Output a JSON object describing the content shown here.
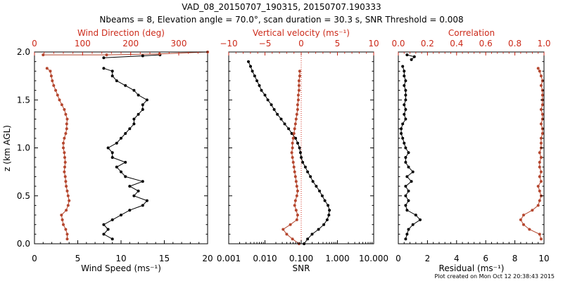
{
  "title_line1": "VAD_08_20150707_190315, 20150707.190333",
  "title_line2": "Nbeams = 8, Elevation angle = 70.0°, scan duration = 30.3 s, SNR Threshold = 0.008",
  "footer": "Plot created on Mon Oct 12 20:38:43 2015",
  "colors": {
    "primary": "#000000",
    "secondary": "#b5472f",
    "axis_red": "#cc2a1a"
  },
  "chart_data": [
    {
      "type": "line",
      "panel": "wind",
      "ylabel": "z (km AGL)",
      "ylim": [
        0.0,
        2.0
      ],
      "yticks": [
        "0.0",
        "0.5",
        "1.0",
        "1.5",
        "2.0"
      ],
      "xlabel": "Wind Speed (ms⁻¹)",
      "xlim": [
        0,
        20
      ],
      "xticks": [
        "0",
        "5",
        "10",
        "15",
        "20"
      ],
      "top_xlabel": "Wind Direction (deg)",
      "top_xlim": [
        0,
        360
      ],
      "top_xticks": [
        "0",
        "100",
        "200",
        "300"
      ],
      "series": [
        {
          "name": "Wind Speed",
          "axis": "bottom",
          "color": "#000000",
          "z": [
            0.05,
            0.1,
            0.15,
            0.2,
            0.25,
            0.3,
            0.35,
            0.4,
            0.45,
            0.5,
            0.55,
            0.6,
            0.65,
            0.7,
            0.75,
            0.8,
            0.85,
            0.9,
            0.95,
            1.0,
            1.05,
            1.1,
            1.15,
            1.2,
            1.25,
            1.3,
            1.35,
            1.4,
            1.45,
            1.5,
            1.55,
            1.6,
            1.65,
            1.7,
            1.75,
            1.8,
            1.83
          ],
          "values": [
            9.0,
            8.0,
            8.5,
            8.0,
            9.0,
            10.0,
            11.0,
            12.5,
            13.0,
            11.5,
            12.0,
            11.0,
            12.5,
            10.5,
            10.0,
            9.5,
            10.5,
            9.0,
            9.0,
            8.5,
            9.5,
            10.0,
            10.5,
            11.0,
            11.5,
            11.5,
            12.0,
            12.5,
            12.5,
            13.0,
            12.0,
            11.5,
            10.5,
            9.5,
            9.0,
            9.0,
            8.0
          ]
        },
        {
          "name": "Wind Direction",
          "axis": "top",
          "color": "#b5472f",
          "z": [
            0.05,
            0.1,
            0.15,
            0.2,
            0.25,
            0.3,
            0.35,
            0.4,
            0.45,
            0.5,
            0.55,
            0.6,
            0.65,
            0.7,
            0.75,
            0.8,
            0.85,
            0.9,
            0.95,
            1.0,
            1.05,
            1.1,
            1.15,
            1.2,
            1.25,
            1.3,
            1.35,
            1.4,
            1.45,
            1.5,
            1.55,
            1.6,
            1.65,
            1.7,
            1.75,
            1.8,
            1.83
          ],
          "values": [
            68,
            68,
            65,
            60,
            58,
            56,
            66,
            70,
            72,
            70,
            68,
            66,
            65,
            64,
            62,
            63,
            64,
            63,
            62,
            60,
            60,
            62,
            65,
            67,
            67,
            68,
            65,
            62,
            57,
            52,
            48,
            44,
            40,
            37,
            35,
            33,
            26
          ]
        },
        {
          "name": "Wind Speed (top)",
          "axis": "bottom",
          "color": "#000000",
          "z": [
            1.94,
            1.96,
            1.97
          ],
          "values": [
            8.0,
            12.5,
            14.5
          ]
        },
        {
          "name": "Wind Direction (top)",
          "axis": "top",
          "color": "#b5472f",
          "z": [
            1.97,
            1.97,
            1.98,
            2.0
          ],
          "values": [
            18,
            150,
            260,
            360
          ]
        }
      ]
    },
    {
      "type": "line",
      "panel": "snr",
      "xlabel": "SNR",
      "xscale": "log",
      "xlim": [
        0.001,
        10.0
      ],
      "xticks": [
        "0.001",
        "0.010",
        "0.100",
        "1.000",
        "10.000"
      ],
      "top_xlabel": "Vertical velocity (ms⁻¹)",
      "top_xlim": [
        -10,
        10
      ],
      "top_xticks": [
        "−10",
        "−5",
        "0",
        "5",
        "10"
      ],
      "ylim": [
        0.0,
        2.0
      ],
      "series": [
        {
          "name": "SNR",
          "axis": "bottom",
          "color": "#000000",
          "z": [
            0.0,
            0.05,
            0.1,
            0.15,
            0.2,
            0.25,
            0.3,
            0.35,
            0.4,
            0.45,
            0.5,
            0.55,
            0.6,
            0.65,
            0.7,
            0.75,
            0.8,
            0.85,
            0.9,
            0.95,
            1.0,
            1.05,
            1.1,
            1.15,
            1.2,
            1.25,
            1.3,
            1.35,
            1.4,
            1.45,
            1.5,
            1.55,
            1.6,
            1.65,
            1.7,
            1.75,
            1.8,
            1.85,
            1.9
          ],
          "values": [
            0.12,
            0.15,
            0.2,
            0.3,
            0.42,
            0.52,
            0.58,
            0.6,
            0.55,
            0.45,
            0.38,
            0.32,
            0.26,
            0.21,
            0.18,
            0.15,
            0.13,
            0.11,
            0.1,
            0.095,
            0.09,
            0.08,
            0.07,
            0.055,
            0.045,
            0.035,
            0.028,
            0.022,
            0.018,
            0.015,
            0.012,
            0.01,
            0.008,
            0.007,
            0.006,
            0.0052,
            0.0045,
            0.004,
            0.0035
          ]
        },
        {
          "name": "Vertical velocity",
          "axis": "top",
          "color": "#b5472f",
          "z": [
            0.0,
            0.05,
            0.1,
            0.15,
            0.2,
            0.25,
            0.3,
            0.35,
            0.4,
            0.45,
            0.5,
            0.55,
            0.6,
            0.65,
            0.7,
            0.75,
            0.8,
            0.85,
            0.9,
            0.95,
            1.0,
            1.05,
            1.1,
            1.15,
            1.2,
            1.25,
            1.3,
            1.35,
            1.4,
            1.45,
            1.5,
            1.55,
            1.6,
            1.65,
            1.7,
            1.75,
            1.8
          ],
          "values": [
            -0.3,
            -1.2,
            -2.0,
            -2.5,
            -1.5,
            -0.6,
            -0.5,
            -0.7,
            -0.9,
            -0.8,
            -0.6,
            -0.5,
            -0.6,
            -0.7,
            -0.8,
            -0.9,
            -1.0,
            -1.1,
            -1.2,
            -1.3,
            -1.2,
            -1.2,
            -1.1,
            -1.0,
            -0.9,
            -0.8,
            -0.7,
            -0.6,
            -0.5,
            -0.5,
            -0.4,
            -0.4,
            -0.3,
            -0.3,
            -0.3,
            -0.2,
            -0.2
          ]
        }
      ]
    },
    {
      "type": "line",
      "panel": "residual",
      "xlabel": "Residual (ms⁻¹)",
      "xlim": [
        0,
        10
      ],
      "xticks": [
        "0",
        "2",
        "4",
        "6",
        "8",
        "10"
      ],
      "top_xlabel": "Correlation",
      "top_xlim": [
        0.0,
        1.0
      ],
      "top_xticks": [
        "0.0",
        "0.2",
        "0.4",
        "0.6",
        "0.8",
        "1.0"
      ],
      "ylim": [
        0.0,
        2.0
      ],
      "series": [
        {
          "name": "Residual",
          "axis": "bottom",
          "color": "#000000",
          "z": [
            0.05,
            0.1,
            0.15,
            0.2,
            0.25,
            0.3,
            0.35,
            0.4,
            0.45,
            0.5,
            0.55,
            0.6,
            0.65,
            0.7,
            0.75,
            0.8,
            0.85,
            0.9,
            0.95,
            1.0,
            1.05,
            1.1,
            1.15,
            1.2,
            1.25,
            1.3,
            1.35,
            1.4,
            1.45,
            1.5,
            1.55,
            1.6,
            1.65,
            1.7,
            1.75,
            1.8,
            1.85
          ],
          "values": [
            0.5,
            0.6,
            0.7,
            1.0,
            1.5,
            1.2,
            0.6,
            0.5,
            0.7,
            0.5,
            0.7,
            0.5,
            0.9,
            0.6,
            1.0,
            0.7,
            0.5,
            0.5,
            0.7,
            0.5,
            0.4,
            0.3,
            0.2,
            0.2,
            0.3,
            0.5,
            0.4,
            0.5,
            0.4,
            0.5,
            0.5,
            0.5,
            0.4,
            0.5,
            0.4,
            0.4,
            0.3
          ]
        },
        {
          "name": "Correlation",
          "axis": "top",
          "color": "#b5472f",
          "z": [
            0.05,
            0.1,
            0.15,
            0.2,
            0.25,
            0.3,
            0.35,
            0.4,
            0.45,
            0.5,
            0.55,
            0.6,
            0.65,
            0.7,
            0.75,
            0.8,
            0.85,
            0.9,
            0.95,
            1.0,
            1.05,
            1.1,
            1.15,
            1.2,
            1.25,
            1.3,
            1.35,
            1.4,
            1.45,
            1.5,
            1.55,
            1.6,
            1.65,
            1.7,
            1.75,
            1.8,
            1.83
          ],
          "values": [
            0.98,
            0.97,
            0.9,
            0.86,
            0.84,
            0.86,
            0.92,
            0.96,
            0.97,
            0.98,
            0.97,
            0.96,
            0.98,
            0.97,
            0.98,
            0.97,
            0.97,
            0.98,
            0.97,
            0.98,
            0.98,
            0.98,
            0.99,
            0.99,
            0.98,
            0.99,
            0.99,
            0.98,
            0.99,
            0.99,
            0.99,
            0.99,
            0.98,
            0.99,
            0.98,
            0.97,
            0.96
          ]
        },
        {
          "name": "Residual (top)",
          "axis": "bottom",
          "color": "#000000",
          "z": [
            1.92,
            1.95,
            1.97
          ],
          "values": [
            0.9,
            1.1,
            0.6
          ]
        }
      ]
    }
  ]
}
